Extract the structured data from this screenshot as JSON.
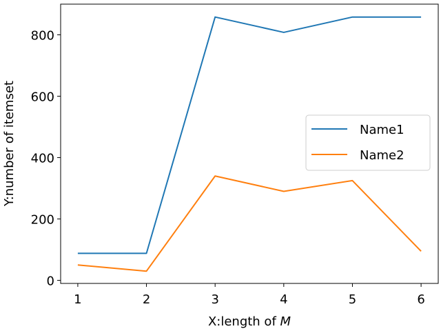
{
  "chart_data": {
    "type": "line",
    "xlabel": "X:length of",
    "xlabel_var": "M",
    "ylabel": "Y:number of itemset",
    "x": [
      1,
      2,
      3,
      4,
      5,
      6
    ],
    "xticks": [
      "1",
      "2",
      "3",
      "4",
      "5",
      "6"
    ],
    "yticks": [
      "0",
      "200",
      "400",
      "600",
      "800"
    ],
    "xlim": [
      0.75,
      6.25
    ],
    "ylim": [
      -10,
      900
    ],
    "grid": false,
    "legend_position": "center-right",
    "series": [
      {
        "name": "Name1",
        "color": "#1f77b4",
        "values": [
          88,
          88,
          858,
          808,
          858,
          858
        ]
      },
      {
        "name": "Name2",
        "color": "#ff7f0e",
        "values": [
          50,
          30,
          340,
          290,
          325,
          95
        ]
      }
    ]
  }
}
